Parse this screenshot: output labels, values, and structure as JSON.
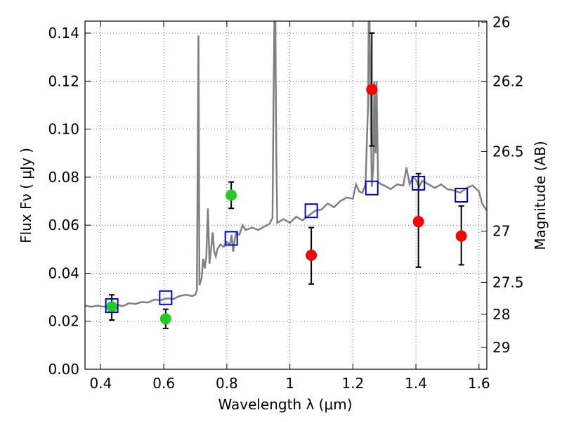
{
  "chart_data": {
    "type": "scatter",
    "xlabel": "Wavelength  λ (μm)",
    "ylabel": "Flux  Fν  ( μJy )",
    "ylabel_right": "Magnitude (AB)",
    "xlim": [
      0.35,
      1.625
    ],
    "ylim": [
      0.0,
      0.145
    ],
    "grid": true,
    "x_ticks": [
      0.4,
      0.6,
      0.8,
      1.0,
      1.2,
      1.4,
      1.6
    ],
    "x_tick_labels": [
      "0.4",
      "0.6",
      "0.8",
      "1",
      "1.2",
      "1.4",
      "1.6"
    ],
    "y_ticks": [
      0.0,
      0.02,
      0.04,
      0.06,
      0.08,
      0.1,
      0.12,
      0.14
    ],
    "y_tick_labels": [
      "0.00",
      "0.02",
      "0.04",
      "0.06",
      "0.08",
      "0.10",
      "0.12",
      "0.14"
    ],
    "right_ticks": [
      {
        "label": "26",
        "flux": 0.1445
      },
      {
        "label": "26.2",
        "flux": 0.1199
      },
      {
        "label": "26.5",
        "flux": 0.0907
      },
      {
        "label": "27",
        "flux": 0.0575
      },
      {
        "label": "27.5",
        "flux": 0.0362
      },
      {
        "label": "28",
        "flux": 0.0229
      },
      {
        "label": "29",
        "flux": 0.0091
      }
    ],
    "series": [
      {
        "marker": "circle",
        "color": "#22cc22",
        "points": [
          {
            "x": 0.435,
            "y": 0.026,
            "err_low": 0.0205,
            "err_high": 0.031
          },
          {
            "x": 0.606,
            "y": 0.021,
            "err_low": 0.017,
            "err_high": 0.025
          },
          {
            "x": 0.814,
            "y": 0.0725,
            "err_low": 0.067,
            "err_high": 0.078
          }
        ]
      },
      {
        "marker": "circle",
        "color": "#ff0000",
        "points": [
          {
            "x": 1.068,
            "y": 0.0475,
            "err_low": 0.0355,
            "err_high": 0.059
          },
          {
            "x": 1.26,
            "y": 0.1165,
            "err_low": 0.093,
            "err_high": 0.14
          },
          {
            "x": 1.408,
            "y": 0.0615,
            "err_low": 0.0425,
            "err_high": 0.0815
          },
          {
            "x": 1.544,
            "y": 0.0555,
            "err_low": 0.0435,
            "err_high": 0.068
          }
        ]
      },
      {
        "marker": "open-square",
        "color": "#0000dd",
        "points": [
          {
            "x": 0.435,
            "y": 0.0265
          },
          {
            "x": 0.606,
            "y": 0.0298
          },
          {
            "x": 0.814,
            "y": 0.0545
          },
          {
            "x": 1.068,
            "y": 0.066
          },
          {
            "x": 1.26,
            "y": 0.0755
          },
          {
            "x": 1.408,
            "y": 0.0775
          },
          {
            "x": 1.544,
            "y": 0.0725
          }
        ]
      }
    ],
    "spectrum": {
      "color": "#808080",
      "points": [
        [
          0.35,
          0.0265
        ],
        [
          0.37,
          0.026
        ],
        [
          0.39,
          0.0265
        ],
        [
          0.41,
          0.026
        ],
        [
          0.43,
          0.027
        ],
        [
          0.45,
          0.0268
        ],
        [
          0.47,
          0.0263
        ],
        [
          0.49,
          0.0275
        ],
        [
          0.51,
          0.0272
        ],
        [
          0.53,
          0.028
        ],
        [
          0.55,
          0.0278
        ],
        [
          0.57,
          0.029
        ],
        [
          0.59,
          0.0288
        ],
        [
          0.61,
          0.0295
        ],
        [
          0.63,
          0.0292
        ],
        [
          0.65,
          0.0305
        ],
        [
          0.67,
          0.031
        ],
        [
          0.69,
          0.0305
        ],
        [
          0.7,
          0.031
        ],
        [
          0.705,
          0.033
        ],
        [
          0.71,
          0.139
        ],
        [
          0.713,
          0.035
        ],
        [
          0.72,
          0.038
        ],
        [
          0.725,
          0.046
        ],
        [
          0.73,
          0.042
        ],
        [
          0.735,
          0.047
        ],
        [
          0.74,
          0.067
        ],
        [
          0.745,
          0.044
        ],
        [
          0.75,
          0.05
        ],
        [
          0.755,
          0.057
        ],
        [
          0.76,
          0.049
        ],
        [
          0.765,
          0.047
        ],
        [
          0.77,
          0.05
        ],
        [
          0.78,
          0.052
        ],
        [
          0.79,
          0.051
        ],
        [
          0.8,
          0.053
        ],
        [
          0.81,
          0.052
        ],
        [
          0.815,
          0.056
        ],
        [
          0.82,
          0.049
        ],
        [
          0.825,
          0.054
        ],
        [
          0.83,
          0.057
        ],
        [
          0.84,
          0.056
        ],
        [
          0.85,
          0.06
        ],
        [
          0.86,
          0.058
        ],
        [
          0.88,
          0.059
        ],
        [
          0.9,
          0.058
        ],
        [
          0.92,
          0.0595
        ],
        [
          0.935,
          0.0605
        ],
        [
          0.945,
          0.063
        ],
        [
          0.948,
          0.11
        ],
        [
          0.951,
          0.145
        ],
        [
          0.954,
          0.145
        ],
        [
          0.957,
          0.09
        ],
        [
          0.96,
          0.061
        ],
        [
          0.98,
          0.0625
        ],
        [
          1.0,
          0.061
        ],
        [
          1.02,
          0.0635
        ],
        [
          1.04,
          0.062
        ],
        [
          1.06,
          0.064
        ],
        [
          1.08,
          0.066
        ],
        [
          1.1,
          0.0665
        ],
        [
          1.12,
          0.069
        ],
        [
          1.14,
          0.0675
        ],
        [
          1.16,
          0.07
        ],
        [
          1.18,
          0.0715
        ],
        [
          1.2,
          0.071
        ],
        [
          1.21,
          0.077
        ],
        [
          1.22,
          0.074
        ],
        [
          1.23,
          0.0735
        ],
        [
          1.24,
          0.077
        ],
        [
          1.248,
          0.11
        ],
        [
          1.25,
          0.145
        ],
        [
          1.253,
          0.145
        ],
        [
          1.256,
          0.11
        ],
        [
          1.26,
          0.076
        ],
        [
          1.265,
          0.085
        ],
        [
          1.268,
          0.12
        ],
        [
          1.272,
          0.09
        ],
        [
          1.275,
          0.12
        ],
        [
          1.28,
          0.078
        ],
        [
          1.29,
          0.077
        ],
        [
          1.3,
          0.0765
        ],
        [
          1.32,
          0.075
        ],
        [
          1.34,
          0.077
        ],
        [
          1.36,
          0.0765
        ],
        [
          1.37,
          0.084
        ],
        [
          1.38,
          0.077
        ],
        [
          1.39,
          0.08
        ],
        [
          1.4,
          0.079
        ],
        [
          1.41,
          0.076
        ],
        [
          1.42,
          0.0785
        ],
        [
          1.44,
          0.077
        ],
        [
          1.46,
          0.0755
        ],
        [
          1.48,
          0.077
        ],
        [
          1.5,
          0.075
        ],
        [
          1.52,
          0.0745
        ],
        [
          1.54,
          0.0735
        ],
        [
          1.56,
          0.0755
        ],
        [
          1.58,
          0.0765
        ],
        [
          1.6,
          0.074
        ],
        [
          1.61,
          0.069
        ],
        [
          1.625,
          0.066
        ]
      ]
    }
  }
}
